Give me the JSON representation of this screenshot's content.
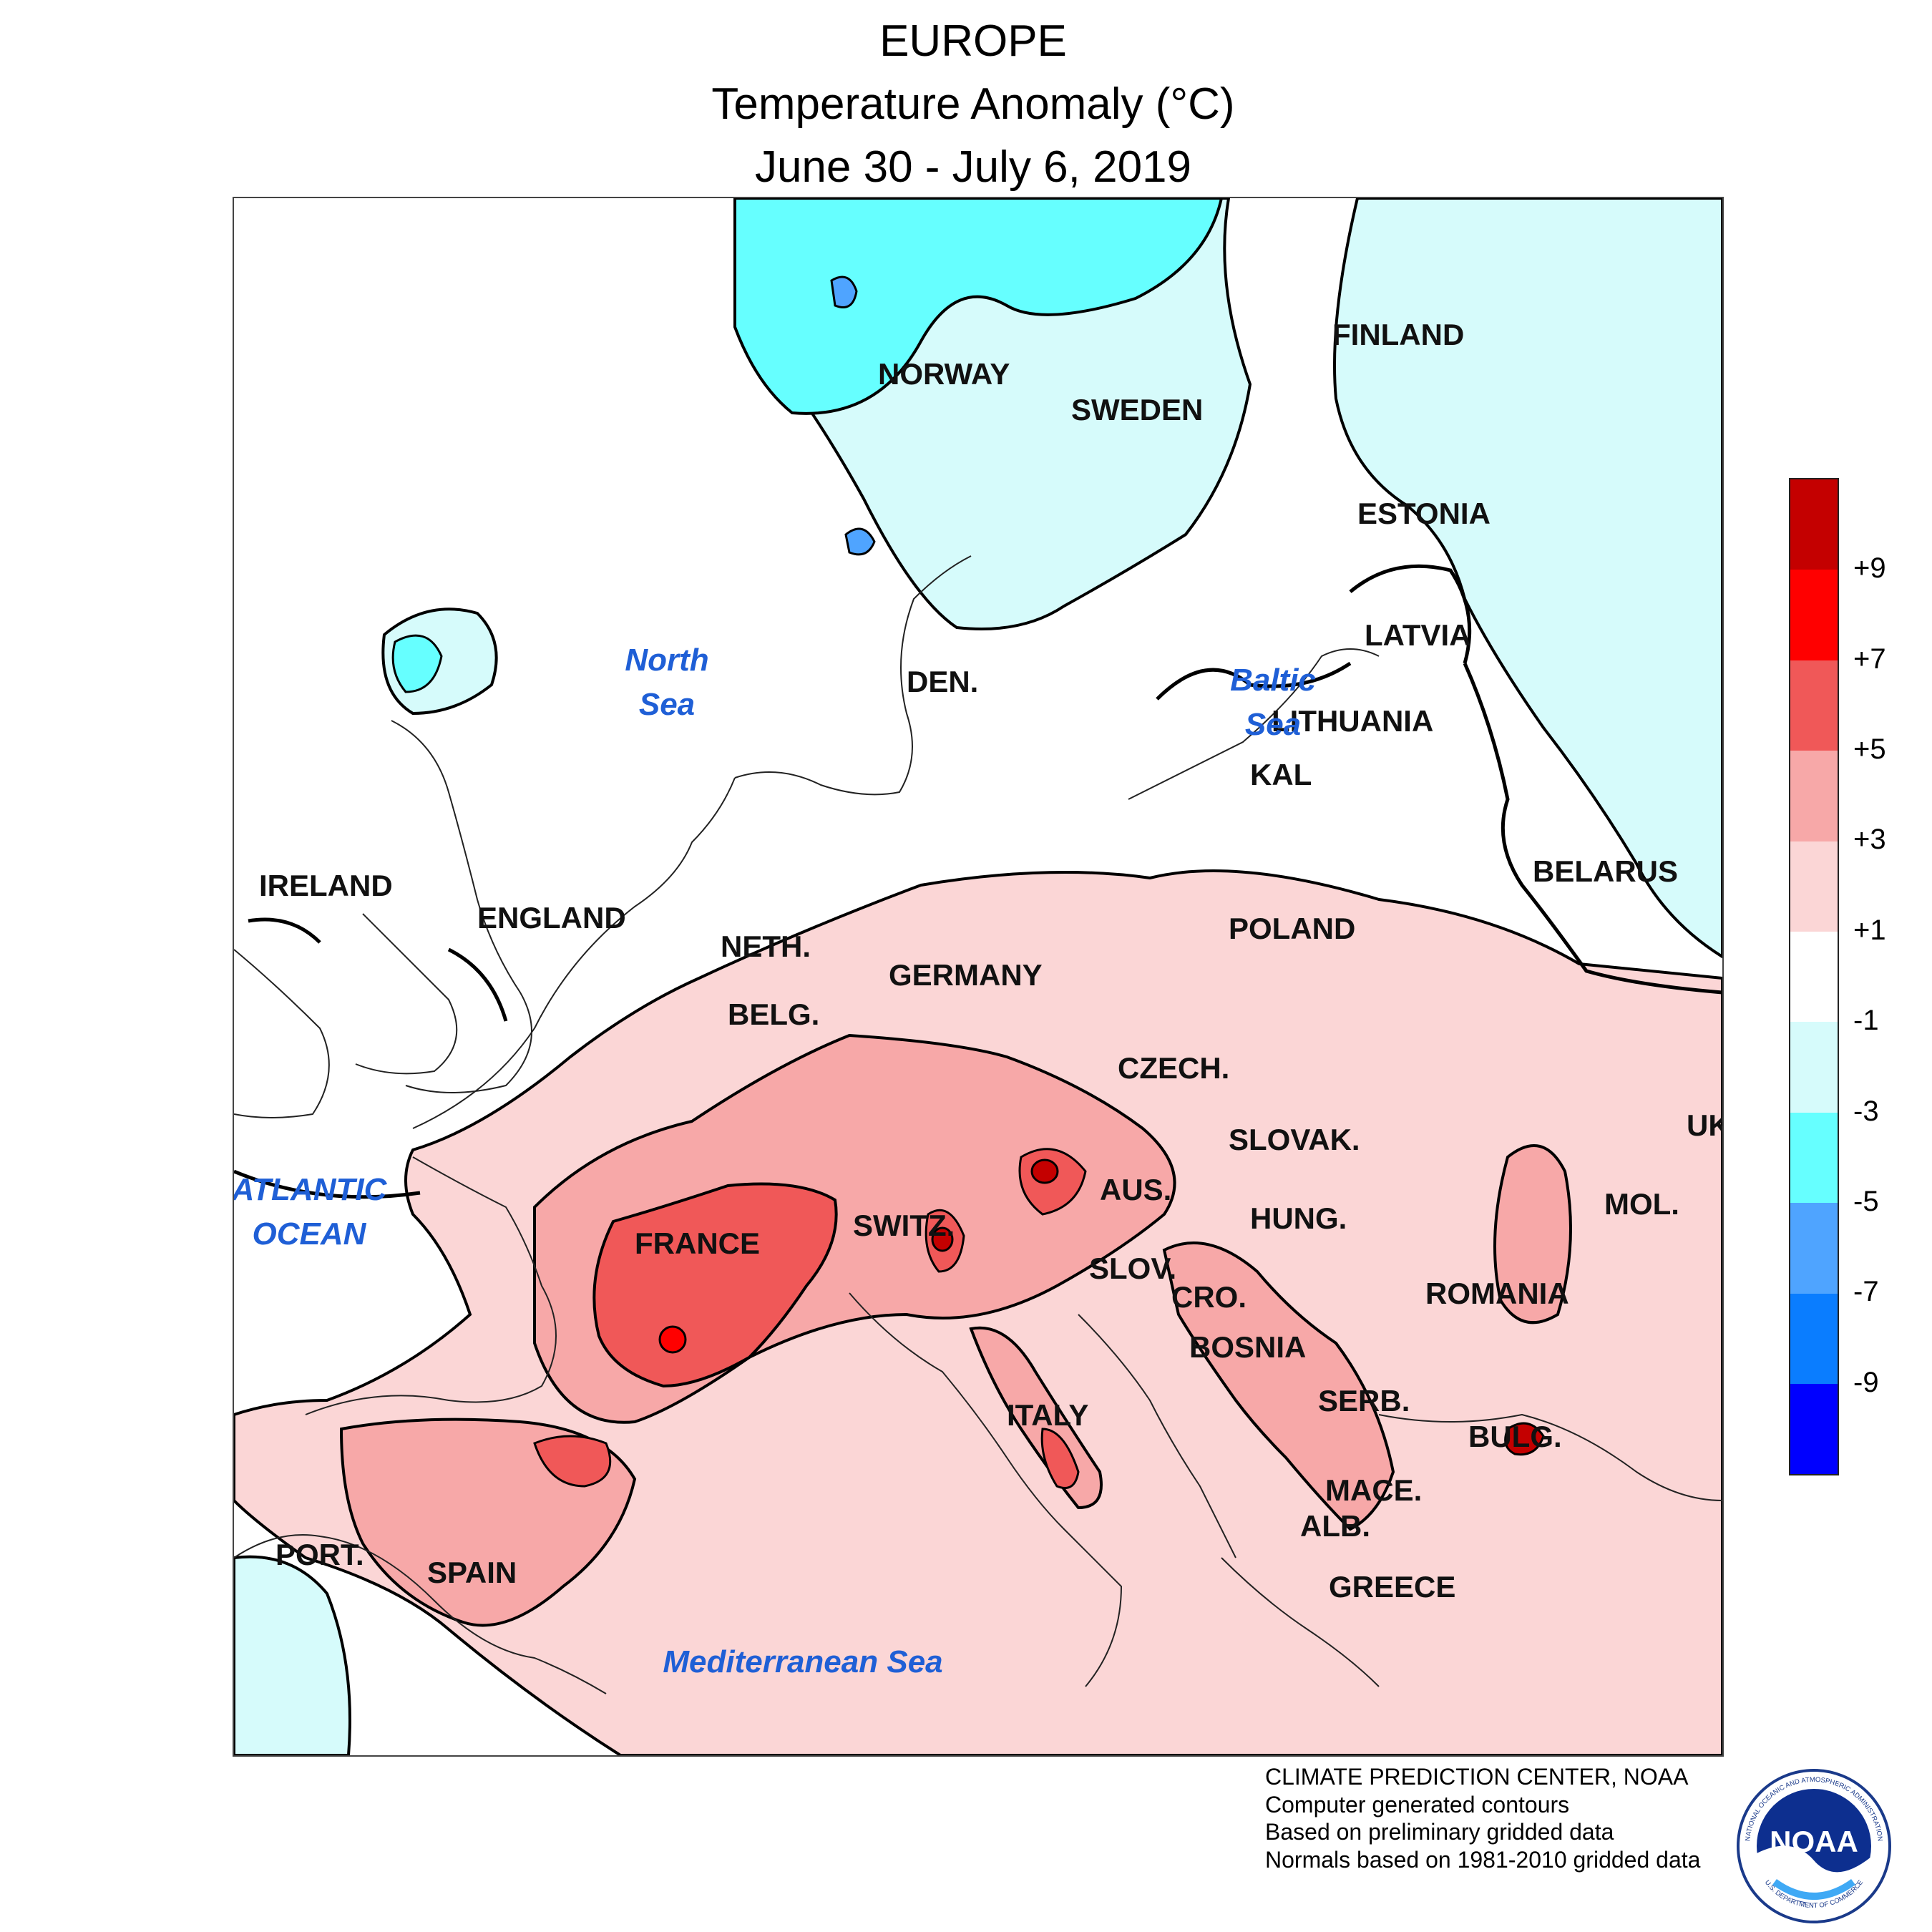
{
  "header": {
    "line1": "EUROPE",
    "line2": "Temperature Anomaly (°C)",
    "line3": "June 30 - July 6, 2019"
  },
  "map": {
    "countries": {
      "finland": "FINLAND",
      "norway": "NORWAY",
      "sweden": "SWEDEN",
      "estonia": "ESTONIA",
      "latvia": "LATVIA",
      "lithuania": "LITHUANIA",
      "kal": "KAL",
      "belarus": "BELARUS",
      "den": "DEN.",
      "ireland": "IRELAND",
      "england": "ENGLAND",
      "neth": "NETH.",
      "belg_w": "BELG.",
      "germany": "GERMANY",
      "poland": "POLAND",
      "czech": "CZECH.",
      "slovak": "SLOVAK.",
      "uk": "UK",
      "france": "FRANCE",
      "switz": "SWITZ.",
      "aus": "AUS.",
      "hung": "HUNG.",
      "mol": "MOL.",
      "slov": "SLOV.",
      "cro": "CRO.",
      "romania": "ROMANIA",
      "bosnia": "BOSNIA",
      "serb": "SERB.",
      "bulg": "BULG.",
      "italy": "ITALY",
      "mace": "MACE.",
      "alb": "ALB.",
      "port": "PORT.",
      "spain": "SPAIN",
      "greece": "GREECE"
    },
    "seas": {
      "north_1": "North",
      "north_2": "Sea",
      "baltic_1": "Baltic",
      "baltic_2": "Sea",
      "atlantic_1": "ATLANTIC",
      "atlantic_2": "OCEAN",
      "med": "Mediterranean Sea"
    },
    "colors": {
      "n1": "#d6fbfb",
      "n3": "#66ffff",
      "n5": "#4fa4ff",
      "p1": "#fbd6d6",
      "p3": "#f7a8a8",
      "p5": "#f05858",
      "p7": "#ff0000",
      "p9": "#c40000"
    }
  },
  "legend": {
    "bands": [
      "#c40000",
      "#ff0000",
      "#f05858",
      "#f7a8a8",
      "#fbd6d6",
      "#ffffff",
      "#d6fbfb",
      "#66ffff",
      "#4fa4ff",
      "#0a7dff",
      "#0000ff"
    ],
    "labels": [
      "+9",
      "+7",
      "+5",
      "+3",
      "+1",
      "-1",
      "-3",
      "-5",
      "-7",
      "-9"
    ]
  },
  "credits": {
    "line1": "CLIMATE PREDICTION CENTER, NOAA",
    "line2": "Computer generated contours",
    "line3": "Based on preliminary gridded data",
    "line4": "Normals based on 1981-2010 gridded data"
  },
  "logo": {
    "word": "NOAA",
    "ring_top": "NATIONAL OCEANIC AND ATMOSPHERIC ADMINISTRATION",
    "ring_bottom": "U.S. DEPARTMENT OF COMMERCE"
  }
}
